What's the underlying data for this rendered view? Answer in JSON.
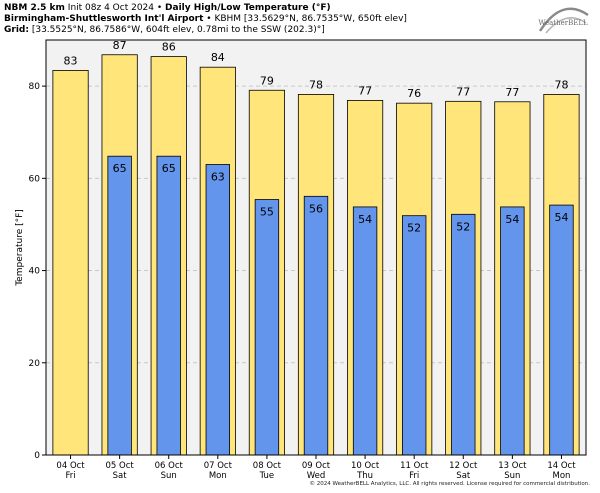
{
  "header": {
    "model": "NBM 2.5 km",
    "init": "Init 08z 4 Oct 2024",
    "product": "Daily High/Low Temperature (°F)",
    "station_name": "Birmingham-Shuttlesworth Int'l Airport",
    "station_info": "KBHM [33.5629°N, 86.7535°W, 650ft elev]",
    "grid_label": "Grid:",
    "grid_info": "[33.5525°N, 86.7586°W, 604ft elev, 0.78mi to the SSW (202.3)°]"
  },
  "logo_text": "WeatherBELL",
  "copyright": "© 2024 WeatherBELL Analytics, LLC. All rights reserved. License required for commercial distribution.",
  "colors": {
    "high_bar": "#FFE57A",
    "low_bar": "#6495ED",
    "plot_bg": "#F2F2F2",
    "grid": "#C8C8C8"
  },
  "chart_data": {
    "type": "bar",
    "ylabel": "Temperature [°F]",
    "ylim": [
      0,
      90
    ],
    "yticks": [
      0,
      20,
      40,
      60,
      80
    ],
    "grid": true,
    "categories": [
      {
        "date": "04 Oct",
        "day": "Fri"
      },
      {
        "date": "05 Oct",
        "day": "Sat"
      },
      {
        "date": "06 Oct",
        "day": "Sun"
      },
      {
        "date": "07 Oct",
        "day": "Mon"
      },
      {
        "date": "08 Oct",
        "day": "Tue"
      },
      {
        "date": "09 Oct",
        "day": "Wed"
      },
      {
        "date": "10 Oct",
        "day": "Thu"
      },
      {
        "date": "11 Oct",
        "day": "Fri"
      },
      {
        "date": "12 Oct",
        "day": "Sat"
      },
      {
        "date": "13 Oct",
        "day": "Sun"
      },
      {
        "date": "14 Oct",
        "day": "Mon"
      }
    ],
    "series": [
      {
        "values": [
          83.4,
          86.8,
          86.4,
          84.1,
          79.1,
          78.2,
          76.9,
          76.3,
          76.7,
          76.6,
          78.2
        ],
        "labels": [
          "83",
          "87",
          "86",
          "84",
          "79",
          "78",
          "77",
          "76",
          "77",
          "77",
          "78"
        ]
      },
      {
        "values": [
          null,
          64.8,
          64.8,
          63.0,
          55.4,
          56.1,
          53.8,
          51.9,
          52.2,
          53.8,
          54.2
        ],
        "labels": [
          null,
          "65",
          "65",
          "63",
          "55",
          "56",
          "54",
          "52",
          "52",
          "54",
          "54"
        ]
      }
    ]
  }
}
